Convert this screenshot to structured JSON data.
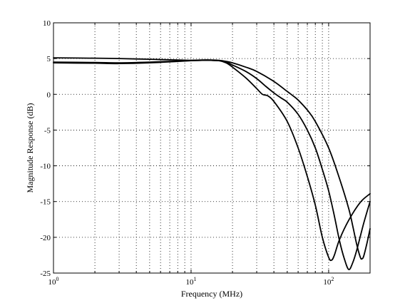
{
  "chart_data": {
    "type": "line",
    "title": "",
    "xlabel": "Frequency (MHz)",
    "ylabel": "Magnitude Response (dB)",
    "xscale": "log",
    "xlim": [
      1,
      200
    ],
    "ylim": [
      -25,
      10
    ],
    "grid": true,
    "legend": "none",
    "line_color": "#000000",
    "x_ticks": [
      {
        "value": 1,
        "base": "10",
        "exp": "0"
      },
      {
        "value": 10,
        "base": "10",
        "exp": "1"
      },
      {
        "value": 100,
        "base": "10",
        "exp": "2"
      }
    ],
    "y_ticks": [
      {
        "value": 10,
        "label": "10"
      },
      {
        "value": 5,
        "label": "5"
      },
      {
        "value": 0,
        "label": "0"
      },
      {
        "value": -5,
        "label": "-5"
      },
      {
        "value": -10,
        "label": "-10"
      },
      {
        "value": -15,
        "label": "-15"
      },
      {
        "value": -20,
        "label": "-20"
      },
      {
        "value": -25,
        "label": "-25"
      }
    ],
    "series": [
      {
        "x": [
          1,
          2,
          3,
          5,
          8,
          10,
          12,
          14,
          16,
          18,
          20,
          25,
          30,
          33,
          36,
          40,
          50,
          60,
          70,
          80,
          90,
          100,
          105,
          110,
          120,
          140,
          170,
          200
        ],
        "y": [
          5.1,
          5.05,
          5.0,
          4.9,
          4.8,
          4.75,
          4.75,
          4.75,
          4.7,
          4.4,
          3.8,
          2.3,
          0.8,
          0.0,
          -0.2,
          -1.0,
          -3.8,
          -7.5,
          -11.5,
          -15.5,
          -20.0,
          -22.8,
          -23.2,
          -22.5,
          -20.3,
          -17.6,
          -15.1,
          -13.9
        ]
      },
      {
        "x": [
          1,
          2,
          3,
          5,
          8,
          10,
          12,
          14,
          16,
          18,
          20,
          25,
          30,
          35,
          40,
          45,
          50,
          60,
          70,
          80,
          90,
          100,
          110,
          120,
          130,
          140,
          150,
          160,
          180,
          200
        ],
        "y": [
          4.4,
          4.35,
          4.3,
          4.4,
          4.6,
          4.7,
          4.75,
          4.75,
          4.7,
          4.5,
          4.1,
          3.2,
          2.2,
          1.1,
          0.2,
          -0.5,
          -1.1,
          -2.8,
          -5.0,
          -7.5,
          -10.5,
          -13.5,
          -17.0,
          -20.5,
          -23.0,
          -24.5,
          -23.5,
          -21.8,
          -18.0,
          -15.0
        ]
      },
      {
        "x": [
          1,
          2,
          3,
          5,
          8,
          10,
          12,
          14,
          16,
          18,
          20,
          25,
          30,
          40,
          50,
          55,
          60,
          70,
          80,
          100,
          120,
          140,
          150,
          160,
          170,
          175,
          180,
          190,
          200
        ],
        "y": [
          4.5,
          4.45,
          4.4,
          4.5,
          4.65,
          4.75,
          4.8,
          4.8,
          4.75,
          4.6,
          4.4,
          3.8,
          3.2,
          1.8,
          0.4,
          -0.2,
          -0.8,
          -2.2,
          -3.8,
          -7.5,
          -11.8,
          -16.0,
          -18.5,
          -21.0,
          -22.8,
          -23.0,
          -22.6,
          -20.8,
          -18.8
        ]
      }
    ]
  }
}
